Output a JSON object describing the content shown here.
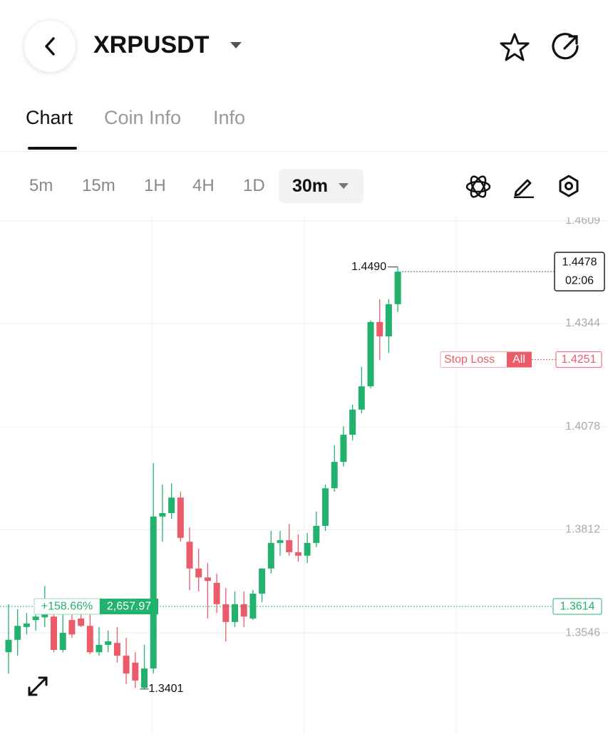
{
  "header": {
    "symbol": "XRPUSDT"
  },
  "tabs": [
    "Chart",
    "Coin Info",
    "Info"
  ],
  "active_tab": 0,
  "intervals": [
    "5m",
    "15m",
    "1H",
    "4H",
    "1D"
  ],
  "selected_interval": "30m",
  "chart_data": {
    "type": "candlestick",
    "open": [
      1.3496,
      1.3528,
      1.3561,
      1.3579,
      1.3586,
      1.3588,
      1.3502,
      1.3579,
      1.3583,
      1.3564,
      1.3496,
      1.3515,
      1.352,
      1.3487,
      1.3469,
      1.3404,
      1.3454,
      1.3846,
      1.3855,
      1.3895,
      1.3781,
      1.3712,
      1.3689,
      1.3675,
      1.362,
      1.3574,
      1.362,
      1.3583,
      1.3647,
      1.3712,
      1.3778,
      1.3785,
      1.3754,
      1.3745,
      1.3778,
      1.3822,
      1.3919,
      1.3987,
      1.4057,
      1.4122,
      1.4182,
      1.4348,
      1.4311,
      1.4394
    ],
    "high": [
      1.362,
      1.3607,
      1.3597,
      1.3625,
      1.3667,
      1.3616,
      1.3597,
      1.3616,
      1.3597,
      1.3597,
      1.3561,
      1.3552,
      1.3561,
      1.3533,
      1.3496,
      1.3515,
      1.3984,
      1.3929,
      1.3932,
      1.391,
      1.3818,
      1.3763,
      1.3726,
      1.3699,
      1.3662,
      1.3653,
      1.3653,
      1.3656,
      1.3712,
      1.3809,
      1.3809,
      1.3827,
      1.38,
      1.3804,
      1.3859,
      1.3929,
      1.403,
      1.4079,
      1.4135,
      1.4232,
      1.4352,
      1.4407,
      1.4407,
      1.449
    ],
    "low": [
      1.3441,
      1.3487,
      1.3542,
      1.3552,
      1.3561,
      1.3496,
      1.3496,
      1.3533,
      1.3561,
      1.3491,
      1.3487,
      1.3496,
      1.3469,
      1.3414,
      1.3404,
      1.3401,
      1.3441,
      1.3781,
      1.384,
      1.3781,
      1.3656,
      1.3653,
      1.3583,
      1.3597,
      1.3524,
      1.3561,
      1.3561,
      1.3579,
      1.3625,
      1.3699,
      1.3745,
      1.3745,
      1.373,
      1.3726,
      1.3767,
      1.3809,
      1.391,
      1.3975,
      1.4043,
      1.4112,
      1.4177,
      1.425,
      1.4269,
      1.4374
    ],
    "close": [
      1.3528,
      1.3564,
      1.357,
      1.3588,
      1.3594,
      1.3502,
      1.3546,
      1.3542,
      1.3564,
      1.3496,
      1.3515,
      1.3524,
      1.3487,
      1.3441,
      1.3423,
      1.3454,
      1.3846,
      1.3855,
      1.3895,
      1.3791,
      1.3712,
      1.3689,
      1.368,
      1.362,
      1.3574,
      1.362,
      1.3588,
      1.3647,
      1.3712,
      1.3778,
      1.3785,
      1.3754,
      1.3745,
      1.3778,
      1.3822,
      1.3919,
      1.3987,
      1.4057,
      1.4122,
      1.4182,
      1.4348,
      1.4311,
      1.4394,
      1.4478
    ],
    "up_color": "#22b26e",
    "down_color": "#ec5b6a",
    "ylim": [
      1.3285,
      1.4618
    ],
    "yticks": [
      1.4609,
      1.4344,
      1.4078,
      1.3812,
      1.3546
    ],
    "grid": true,
    "high_label": "1.4490",
    "low_label": "1.3401",
    "current_price": 1.4478,
    "countdown": "02:06",
    "stop_loss": {
      "label": "Stop Loss",
      "scope": "All",
      "price": 1.4251
    },
    "position": {
      "pnl_percent": "+158.66%",
      "pnl": "2,657.97",
      "price": 1.3614
    }
  }
}
